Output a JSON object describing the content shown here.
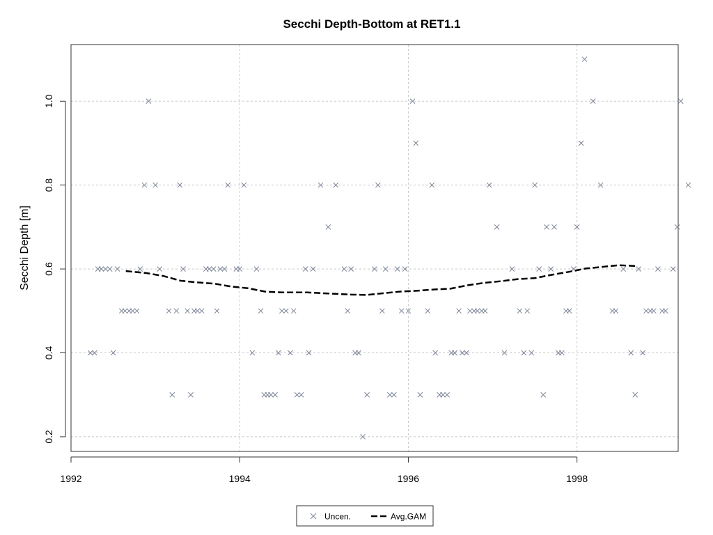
{
  "chart_data": {
    "type": "scatter",
    "title": "Secchi Depth-Bottom at RET1.1",
    "xlabel": "",
    "ylabel": "Secchi Depth [m]",
    "xlim": [
      1992,
      1999.2
    ],
    "ylim": [
      0.165,
      1.135
    ],
    "x_ticks": [
      1992,
      1994,
      1996,
      1998
    ],
    "x_tick_labels": [
      "1992",
      "1994",
      "1996",
      "1998"
    ],
    "y_ticks": [
      0.2,
      0.4,
      0.6,
      0.8,
      1.0
    ],
    "y_tick_labels": [
      "0.2",
      "0.4",
      "0.6",
      "0.8",
      "1.0"
    ],
    "grid": true,
    "legend_position": "bottom-center",
    "legend": [
      {
        "label": "Uncen.",
        "symbol": "x"
      },
      {
        "label": "Avg.GAM",
        "symbol": "dashed-line"
      }
    ],
    "colors": {
      "points": "#7a8396",
      "gam": "#000000",
      "grid": "#c8c8c8",
      "axis": "#333333"
    },
    "series": [
      {
        "name": "Uncen.",
        "kind": "points",
        "points": [
          [
            1992.23,
            0.4
          ],
          [
            1992.28,
            0.4
          ],
          [
            1992.32,
            0.6
          ],
          [
            1992.36,
            0.6
          ],
          [
            1992.41,
            0.6
          ],
          [
            1992.46,
            0.6
          ],
          [
            1992.5,
            0.4
          ],
          [
            1992.55,
            0.6
          ],
          [
            1992.6,
            0.5
          ],
          [
            1992.64,
            0.5
          ],
          [
            1992.69,
            0.5
          ],
          [
            1992.73,
            0.5
          ],
          [
            1992.78,
            0.5
          ],
          [
            1992.82,
            0.6
          ],
          [
            1992.87,
            0.8
          ],
          [
            1992.92,
            1.0
          ],
          [
            1993.0,
            0.8
          ],
          [
            1993.05,
            0.6
          ],
          [
            1993.16,
            0.5
          ],
          [
            1993.2,
            0.3
          ],
          [
            1993.25,
            0.5
          ],
          [
            1993.29,
            0.8
          ],
          [
            1993.33,
            0.6
          ],
          [
            1993.38,
            0.5
          ],
          [
            1993.42,
            0.3
          ],
          [
            1993.46,
            0.5
          ],
          [
            1993.5,
            0.5
          ],
          [
            1993.55,
            0.5
          ],
          [
            1993.6,
            0.6
          ],
          [
            1993.64,
            0.6
          ],
          [
            1993.69,
            0.6
          ],
          [
            1993.73,
            0.5
          ],
          [
            1993.77,
            0.6
          ],
          [
            1993.82,
            0.6
          ],
          [
            1993.86,
            0.8
          ],
          [
            1993.96,
            0.6
          ],
          [
            1994.0,
            0.6
          ],
          [
            1994.05,
            0.8
          ],
          [
            1994.15,
            0.4
          ],
          [
            1994.2,
            0.6
          ],
          [
            1994.25,
            0.5
          ],
          [
            1994.29,
            0.3
          ],
          [
            1994.33,
            0.3
          ],
          [
            1994.37,
            0.3
          ],
          [
            1994.42,
            0.3
          ],
          [
            1994.46,
            0.4
          ],
          [
            1994.5,
            0.5
          ],
          [
            1994.55,
            0.5
          ],
          [
            1994.6,
            0.4
          ],
          [
            1994.64,
            0.5
          ],
          [
            1994.68,
            0.3
          ],
          [
            1994.73,
            0.3
          ],
          [
            1994.78,
            0.6
          ],
          [
            1994.82,
            0.4
          ],
          [
            1994.87,
            0.6
          ],
          [
            1994.96,
            0.8
          ],
          [
            1995.05,
            0.7
          ],
          [
            1995.14,
            0.8
          ],
          [
            1995.24,
            0.6
          ],
          [
            1995.28,
            0.5
          ],
          [
            1995.32,
            0.6
          ],
          [
            1995.37,
            0.4
          ],
          [
            1995.41,
            0.4
          ],
          [
            1995.46,
            0.2
          ],
          [
            1995.51,
            0.3
          ],
          [
            1995.6,
            0.6
          ],
          [
            1995.64,
            0.8
          ],
          [
            1995.69,
            0.5
          ],
          [
            1995.73,
            0.6
          ],
          [
            1995.78,
            0.3
          ],
          [
            1995.83,
            0.3
          ],
          [
            1995.87,
            0.6
          ],
          [
            1995.92,
            0.5
          ],
          [
            1995.96,
            0.6
          ],
          [
            1996.0,
            0.5
          ],
          [
            1996.05,
            1.0
          ],
          [
            1996.09,
            0.9
          ],
          [
            1996.14,
            0.3
          ],
          [
            1996.23,
            0.5
          ],
          [
            1996.28,
            0.8
          ],
          [
            1996.32,
            0.4
          ],
          [
            1996.37,
            0.3
          ],
          [
            1996.41,
            0.3
          ],
          [
            1996.46,
            0.3
          ],
          [
            1996.51,
            0.4
          ],
          [
            1996.55,
            0.4
          ],
          [
            1996.6,
            0.5
          ],
          [
            1996.64,
            0.4
          ],
          [
            1996.69,
            0.4
          ],
          [
            1996.73,
            0.5
          ],
          [
            1996.78,
            0.5
          ],
          [
            1996.82,
            0.5
          ],
          [
            1996.87,
            0.5
          ],
          [
            1996.91,
            0.5
          ],
          [
            1996.96,
            0.8
          ],
          [
            1997.05,
            0.7
          ],
          [
            1997.14,
            0.4
          ],
          [
            1997.23,
            0.6
          ],
          [
            1997.32,
            0.5
          ],
          [
            1997.37,
            0.4
          ],
          [
            1997.41,
            0.5
          ],
          [
            1997.46,
            0.4
          ],
          [
            1997.5,
            0.8
          ],
          [
            1997.55,
            0.6
          ],
          [
            1997.6,
            0.3
          ],
          [
            1997.64,
            0.7
          ],
          [
            1997.69,
            0.6
          ],
          [
            1997.73,
            0.7
          ],
          [
            1997.78,
            0.4
          ],
          [
            1997.82,
            0.4
          ],
          [
            1997.87,
            0.5
          ],
          [
            1997.91,
            0.5
          ],
          [
            1997.96,
            0.6
          ],
          [
            1998.0,
            0.7
          ],
          [
            1998.05,
            0.9
          ],
          [
            1998.09,
            1.1
          ],
          [
            1998.19,
            1.0
          ],
          [
            1998.28,
            0.8
          ],
          [
            1998.42,
            0.5
          ],
          [
            1998.46,
            0.5
          ],
          [
            1998.55,
            0.6
          ],
          [
            1998.64,
            0.4
          ],
          [
            1998.69,
            0.3
          ],
          [
            1998.73,
            0.6
          ],
          [
            1998.78,
            0.4
          ],
          [
            1998.82,
            0.5
          ],
          [
            1998.87,
            0.5
          ],
          [
            1998.91,
            0.5
          ],
          [
            1998.96,
            0.6
          ],
          [
            1999.01,
            0.5
          ],
          [
            1999.05,
            0.5
          ],
          [
            1999.14,
            0.6
          ],
          [
            1999.19,
            0.7
          ],
          [
            1999.23,
            1.0
          ],
          [
            1999.32,
            0.8
          ]
        ]
      },
      {
        "name": "Avg.GAM",
        "kind": "line",
        "points": [
          [
            1992.65,
            0.595
          ],
          [
            1992.9,
            0.59
          ],
          [
            1993.1,
            0.583
          ],
          [
            1993.3,
            0.572
          ],
          [
            1993.5,
            0.568
          ],
          [
            1993.7,
            0.565
          ],
          [
            1993.9,
            0.558
          ],
          [
            1994.1,
            0.554
          ],
          [
            1994.3,
            0.546
          ],
          [
            1994.5,
            0.544
          ],
          [
            1994.8,
            0.544
          ],
          [
            1995.1,
            0.541
          ],
          [
            1995.3,
            0.539
          ],
          [
            1995.5,
            0.538
          ],
          [
            1995.7,
            0.542
          ],
          [
            1995.9,
            0.546
          ],
          [
            1996.1,
            0.548
          ],
          [
            1996.3,
            0.551
          ],
          [
            1996.5,
            0.553
          ],
          [
            1996.7,
            0.561
          ],
          [
            1996.9,
            0.567
          ],
          [
            1997.1,
            0.571
          ],
          [
            1997.3,
            0.576
          ],
          [
            1997.5,
            0.578
          ],
          [
            1997.7,
            0.586
          ],
          [
            1997.9,
            0.593
          ],
          [
            1998.1,
            0.601
          ],
          [
            1998.3,
            0.605
          ],
          [
            1998.5,
            0.609
          ],
          [
            1998.7,
            0.607
          ]
        ]
      }
    ]
  }
}
